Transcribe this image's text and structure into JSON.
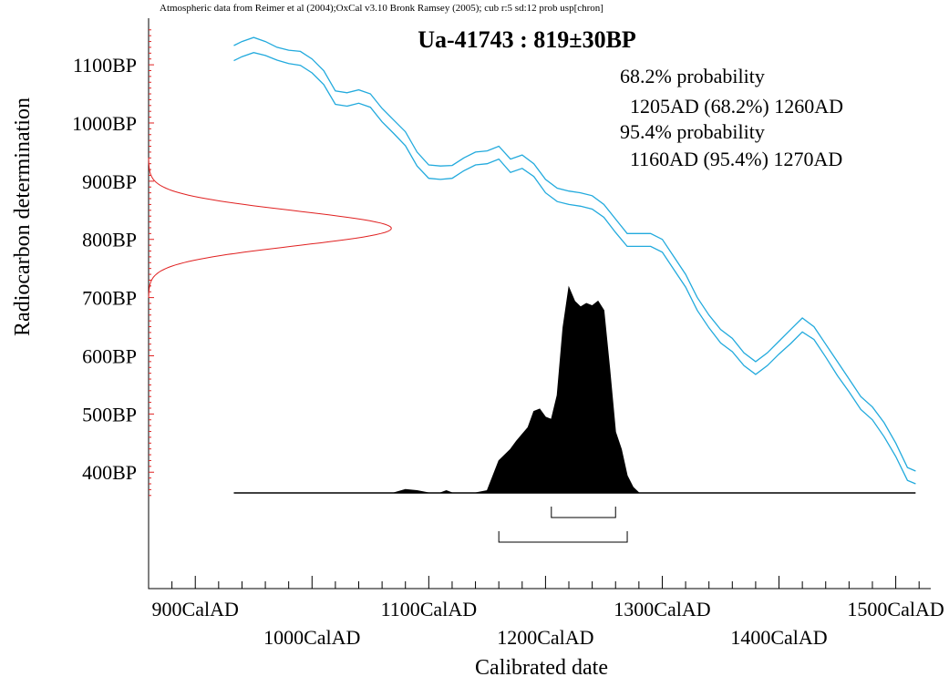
{
  "chart_data": {
    "type": "area",
    "suptitle": "Atmospheric data from Reimer et al (2004);OxCal v3.10 Bronk Ramsey (2005); cub r:5 sd:12 prob usp[chron]",
    "title": "Ua-41743 : 819±30BP",
    "xlabel": "Calibrated date",
    "ylabel": "Radiocarbon determination",
    "xlim": [
      860,
      1530
    ],
    "ylim": [
      200,
      1180
    ],
    "x_ticks": [
      {
        "value": 900,
        "label": "900CalAD",
        "row": 1
      },
      {
        "value": 1000,
        "label": "1000CalAD",
        "row": 2
      },
      {
        "value": 1100,
        "label": "1100CalAD",
        "row": 1
      },
      {
        "value": 1200,
        "label": "1200CalAD",
        "row": 2
      },
      {
        "value": 1300,
        "label": "1300CalAD",
        "row": 1
      },
      {
        "value": 1400,
        "label": "1400CalAD",
        "row": 2
      },
      {
        "value": 1500,
        "label": "1500CalAD",
        "row": 1
      }
    ],
    "y_ticks": [
      {
        "value": 1100,
        "label": "1100BP"
      },
      {
        "value": 1000,
        "label": "1000BP"
      },
      {
        "value": 900,
        "label": "900BP"
      },
      {
        "value": 800,
        "label": "800BP"
      },
      {
        "value": 700,
        "label": "700BP"
      },
      {
        "value": 600,
        "label": "600BP"
      },
      {
        "value": 500,
        "label": "500BP"
      },
      {
        "value": 400,
        "label": "400BP"
      }
    ],
    "legend": [
      "68.2% probability",
      "  1205AD (68.2%) 1260AD",
      "95.4% probability",
      "  1160AD (95.4%) 1270AD"
    ],
    "colors": {
      "calibration_curve": "#22aadd",
      "radiocarbon_distribution": "#e02020",
      "posterior": "#000000",
      "axis": "#000000"
    },
    "radiocarbon_measurement": {
      "mean": 819,
      "sd": 30,
      "peak_date": 1068
    },
    "calibration_curve": {
      "x": [
        933,
        940,
        950,
        960,
        970,
        980,
        990,
        1000,
        1010,
        1020,
        1030,
        1040,
        1050,
        1060,
        1070,
        1080,
        1090,
        1100,
        1110,
        1120,
        1130,
        1140,
        1150,
        1160,
        1170,
        1180,
        1190,
        1200,
        1210,
        1220,
        1230,
        1240,
        1250,
        1260,
        1270,
        1280,
        1290,
        1300,
        1310,
        1320,
        1330,
        1340,
        1350,
        1360,
        1370,
        1380,
        1390,
        1400,
        1410,
        1420,
        1430,
        1440,
        1450,
        1460,
        1470,
        1480,
        1490,
        1500,
        1510,
        1517
      ],
      "upper": [
        1133,
        1140,
        1147,
        1140,
        1130,
        1125,
        1123,
        1110,
        1090,
        1055,
        1052,
        1057,
        1050,
        1025,
        1005,
        985,
        950,
        928,
        926,
        927,
        940,
        950,
        952,
        960,
        938,
        945,
        930,
        903,
        888,
        883,
        880,
        875,
        860,
        835,
        810,
        810,
        810,
        800,
        770,
        740,
        700,
        670,
        645,
        630,
        605,
        590,
        605,
        625,
        645,
        665,
        650,
        620,
        590,
        560,
        530,
        512,
        485,
        450,
        408,
        402
      ],
      "lower": [
        1107,
        1114,
        1121,
        1116,
        1108,
        1102,
        1099,
        1086,
        1066,
        1032,
        1029,
        1034,
        1027,
        1002,
        982,
        961,
        926,
        905,
        903,
        905,
        918,
        928,
        930,
        938,
        915,
        922,
        908,
        880,
        865,
        860,
        857,
        852,
        838,
        812,
        788,
        788,
        788,
        778,
        748,
        718,
        678,
        648,
        622,
        607,
        583,
        568,
        583,
        603,
        621,
        641,
        628,
        598,
        566,
        538,
        508,
        490,
        461,
        427,
        386,
        380
      ]
    },
    "posterior_distribution": {
      "x": [
        1030,
        1060,
        1070,
        1080,
        1090,
        1100,
        1110,
        1115,
        1120,
        1130,
        1140,
        1150,
        1160,
        1170,
        1175,
        1180,
        1185,
        1190,
        1195,
        1200,
        1205,
        1210,
        1215,
        1220,
        1225,
        1230,
        1235,
        1240,
        1245,
        1250,
        1255,
        1260,
        1265,
        1270,
        1275,
        1280,
        1290,
        1300
      ],
      "probability": [
        0,
        0,
        0,
        0.03,
        0.02,
        0,
        0,
        0.02,
        0,
        0,
        0,
        0.02,
        0.28,
        0.38,
        0.45,
        0.51,
        0.57,
        0.71,
        0.73,
        0.66,
        0.64,
        0.85,
        1.44,
        1.79,
        1.67,
        1.62,
        1.65,
        1.63,
        1.67,
        1.59,
        1.08,
        0.53,
        0.38,
        0.15,
        0.05,
        0,
        0,
        0
      ]
    },
    "ranges": [
      {
        "level": "68.2%",
        "from": 1205,
        "to": 1260
      },
      {
        "level": "95.4%",
        "from": 1160,
        "to": 1270
      }
    ]
  }
}
